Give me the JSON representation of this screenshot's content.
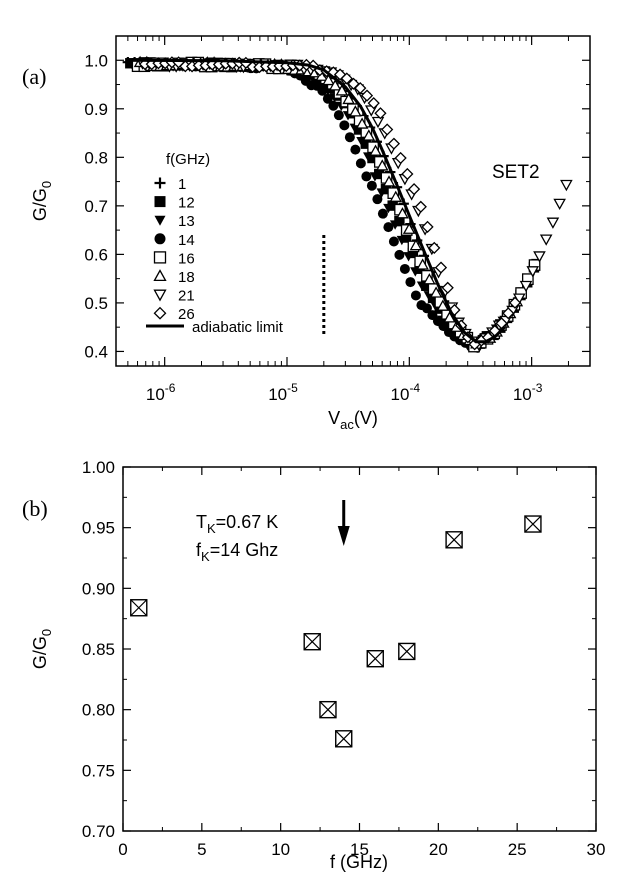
{
  "chart_data": [
    {
      "panel_label": "(a)",
      "type": "scatter",
      "xscale": "log",
      "xlim": [
        4e-07,
        0.003
      ],
      "ylim": [
        0.37,
        1.05
      ],
      "ylabel": "G/G0",
      "ylabel_main": "G/G",
      "ylabel_sub": "0",
      "xlabel": "Vac(V)",
      "xlabel_main": "V",
      "xlabel_sub": "ac",
      "xlabel_tail": "(V)",
      "xticks": [
        {
          "value": 1e-06,
          "base": "10",
          "exp": "-6"
        },
        {
          "value": 1e-05,
          "base": "10",
          "exp": "-5"
        },
        {
          "value": 0.0001,
          "base": "10",
          "exp": "-4"
        },
        {
          "value": 0.001,
          "base": "10",
          "exp": "-3"
        }
      ],
      "yticks": [
        "0.4",
        "0.5",
        "0.6",
        "0.7",
        "0.8",
        "0.9",
        "1.0"
      ],
      "annotation": "SET2",
      "legend_title": "f(GHz)",
      "legend_placement": "left",
      "reference_line_x": 2e-05,
      "series": [
        {
          "name": "1",
          "marker": "plus",
          "shift": 0.0
        },
        {
          "name": "12",
          "marker": "filled-square",
          "shift": -0.09
        },
        {
          "name": "13",
          "marker": "filled-triangle-down",
          "shift": -0.13
        },
        {
          "name": "14",
          "marker": "filled-circle",
          "shift": -0.2
        },
        {
          "name": "16",
          "marker": "open-square",
          "shift": -0.05
        },
        {
          "name": "18",
          "marker": "open-triangle-up",
          "shift": -0.04
        },
        {
          "name": "21",
          "marker": "open-triangle-down",
          "shift": 0.1
        },
        {
          "name": "26",
          "marker": "open-diamond",
          "shift": 0.14
        }
      ],
      "adiabatic_limit": {
        "name": "adiabatic limit",
        "points": [
          [
            5e-07,
            1.0
          ],
          [
            3e-06,
            0.999
          ],
          [
            1e-05,
            0.995
          ],
          [
            1.5e-05,
            0.99
          ],
          [
            2e-05,
            0.98
          ],
          [
            3e-05,
            0.945
          ],
          [
            4e-05,
            0.905
          ],
          [
            5e-05,
            0.86
          ],
          [
            6e-05,
            0.815
          ],
          [
            7e-05,
            0.775
          ],
          [
            8e-05,
            0.74
          ],
          [
            0.0001,
            0.68
          ],
          [
            0.00013,
            0.61
          ],
          [
            0.00017,
            0.54
          ],
          [
            0.00022,
            0.48
          ],
          [
            0.00028,
            0.44
          ],
          [
            0.00035,
            0.42
          ],
          [
            0.00042,
            0.42
          ],
          [
            0.0005,
            0.43
          ],
          [
            0.0006,
            0.45
          ]
        ]
      }
    },
    {
      "panel_label": "(b)",
      "type": "scatter",
      "xlim": [
        0,
        30
      ],
      "ylim": [
        0.7,
        1.0
      ],
      "xlabel": "f (GHz)",
      "ylabel": "G/G0",
      "ylabel_main": "G/G",
      "ylabel_sub": "0",
      "xticks": [
        "0",
        "5",
        "10",
        "15",
        "20",
        "25",
        "30"
      ],
      "yticks": [
        "0.70",
        "0.75",
        "0.80",
        "0.85",
        "0.90",
        "0.95",
        "1.00"
      ],
      "marker": "crossed-square",
      "points": [
        {
          "x": 1,
          "y": 0.884
        },
        {
          "x": 12,
          "y": 0.856
        },
        {
          "x": 13,
          "y": 0.8
        },
        {
          "x": 14,
          "y": 0.776
        },
        {
          "x": 16,
          "y": 0.842
        },
        {
          "x": 18,
          "y": 0.848
        },
        {
          "x": 21,
          "y": 0.94
        },
        {
          "x": 26,
          "y": 0.953
        }
      ],
      "annotation_tk": {
        "main": "T",
        "sub": "K",
        "tail": "=0.67 K"
      },
      "annotation_fk": {
        "main": "f",
        "sub": "K",
        "tail": "=14 Ghz"
      },
      "arrow_at_x": 14
    }
  ]
}
